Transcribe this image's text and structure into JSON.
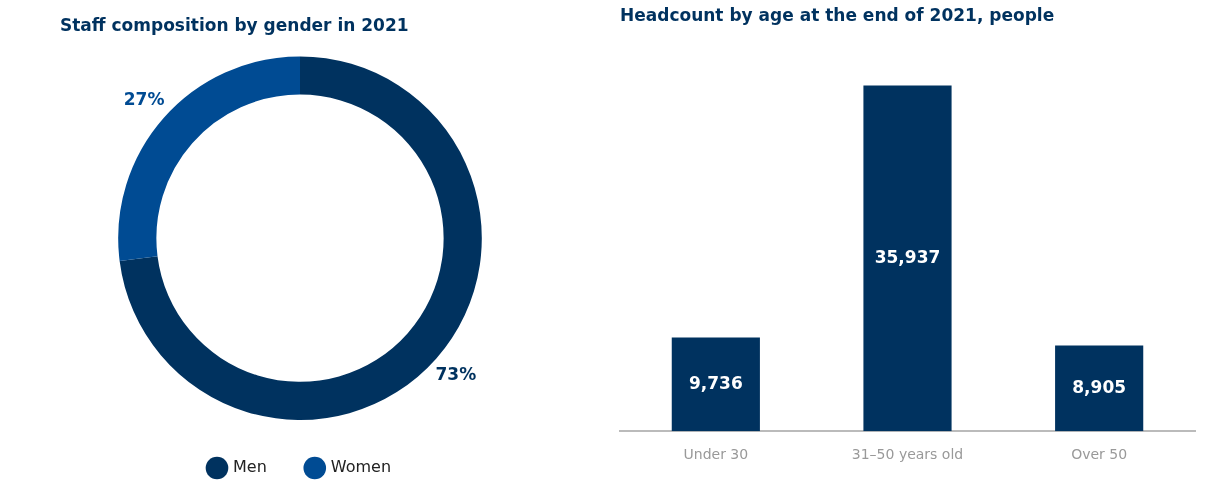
{
  "chart_data": [
    {
      "type": "donut",
      "title": "Staff composition by gender in 2021",
      "categories": [
        "Men",
        "Women"
      ],
      "values": [
        73,
        27
      ],
      "colors": [
        "#00325f",
        "#004b93"
      ],
      "value_labels": [
        "73%",
        "27%"
      ],
      "legend": "bottom"
    },
    {
      "type": "bar",
      "title": "Headcount by age at the end of 2021, people",
      "categories": [
        "Under 30",
        "31–50 years old",
        "Over 50"
      ],
      "values": [
        9736,
        35937,
        8905
      ],
      "color": "#00325f",
      "value_labels": [
        "9,736",
        "35,937",
        "8,905"
      ],
      "grid": false,
      "legend": false
    }
  ]
}
